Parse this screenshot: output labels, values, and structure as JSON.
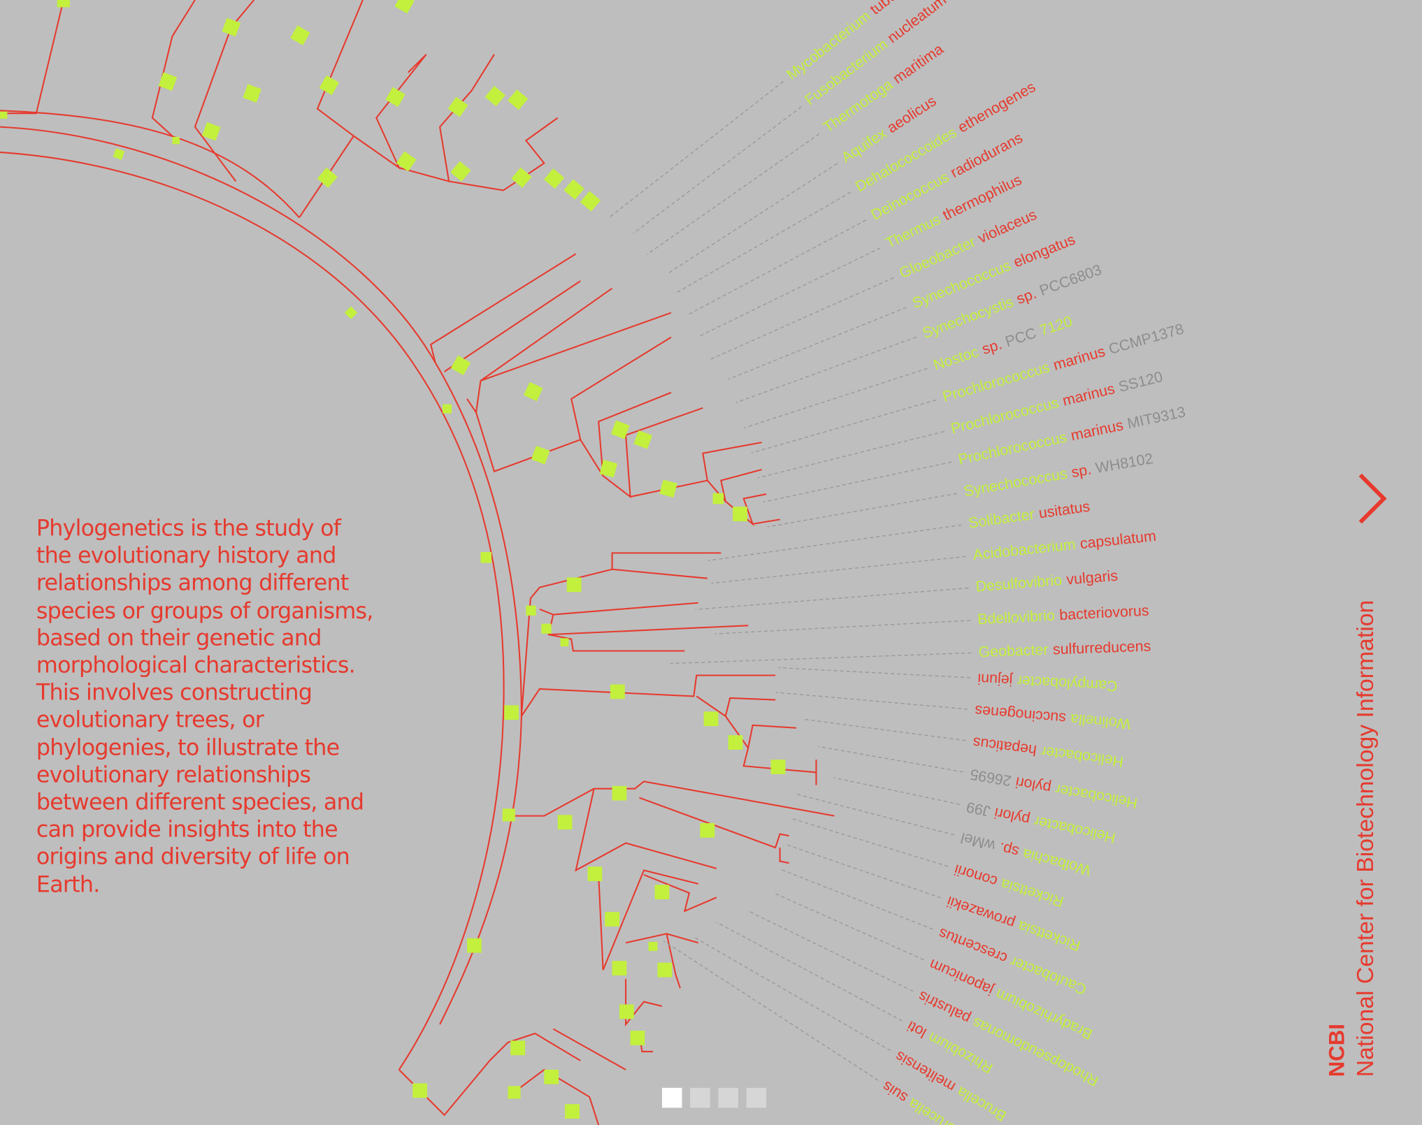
{
  "description": "Phylogenetics is the study of the evolutionary history and relationships among different species or groups of organisms, based on their genetic and morphological characteristics. This involves constructing evolutionary trees, or phylogenies, to illustrate the evolutionary relationships between different species, and can provide insights into the origins and diversity of life on Earth.",
  "brand": {
    "abbreviation": "NCBI",
    "name": "National Center for Biotechnology Information"
  },
  "species": [
    {
      "genus": "Mycobacterium",
      "species": "tuberculosis"
    },
    {
      "genus": "Fusobacterium",
      "species": "nucleatum"
    },
    {
      "genus": "Thermotoga",
      "species": "maritima"
    },
    {
      "genus": "Aquifex",
      "species": "aeolicus"
    },
    {
      "genus": "Dehalococcoides",
      "species": "ethenogenes"
    },
    {
      "genus": "Deinococcus",
      "species": "radiodurans"
    },
    {
      "genus": "Thermus",
      "species": "thermophilus"
    },
    {
      "genus": "Gloeobacter",
      "species": "violaceus"
    },
    {
      "genus": "Synechococcus",
      "species": "elongatus"
    },
    {
      "genus": "Synechocystis",
      "species": "sp.",
      "strain": "PCC6803"
    },
    {
      "genus": "Nostoc",
      "species": "sp.",
      "strain": "PCC",
      "strain_code": "7120"
    },
    {
      "genus": "Prochlorococcus",
      "species": "marinus",
      "strain": "CCMP1378"
    },
    {
      "genus": "Prochlorococcus",
      "species": "marinus",
      "strain": "SS120"
    },
    {
      "genus": "Prochlorococcus",
      "species": "marinus",
      "strain": "MIT9313"
    },
    {
      "genus": "Synechococcus",
      "species": "sp.",
      "strain": "WH8102"
    },
    {
      "genus": "Solibacter",
      "species": "usitatus"
    },
    {
      "genus": "Acidobacterium",
      "species": "capsulatum"
    },
    {
      "genus": "Desulfovibrio",
      "species": "vulgaris"
    },
    {
      "genus": "Bdellovibrio",
      "species": "bacteriovorus"
    },
    {
      "genus": "Geobacter",
      "species": "sulfurreducens"
    },
    {
      "genus": "Campylobacter",
      "species": "jejuni"
    },
    {
      "genus": "Wolinella",
      "species": "succinogenes"
    },
    {
      "genus": "Helicobacter",
      "species": "hepaticus"
    },
    {
      "genus": "Helicobacter",
      "species": "pylori",
      "strain": "26695"
    },
    {
      "genus": "Helicobacter",
      "species": "pylori",
      "strain": "J99"
    },
    {
      "genus": "Wolbachia",
      "species": "sp.",
      "strain": "wMel"
    },
    {
      "genus": "Rickettsia",
      "species": "conorii"
    },
    {
      "genus": "Rickettsia",
      "species": "prowazekii"
    },
    {
      "genus": "Caulobacter",
      "species": "crescentus"
    },
    {
      "genus": "Bradyrhizobium",
      "species": "japonicum"
    },
    {
      "genus": "Rhodopseudomonas",
      "species": "palustris"
    },
    {
      "genus": "Rhizobium",
      "species": "loti"
    },
    {
      "genus": "Brucella",
      "species": "melitensis"
    },
    {
      "genus": "Brucella",
      "species": "suis"
    }
  ]
}
